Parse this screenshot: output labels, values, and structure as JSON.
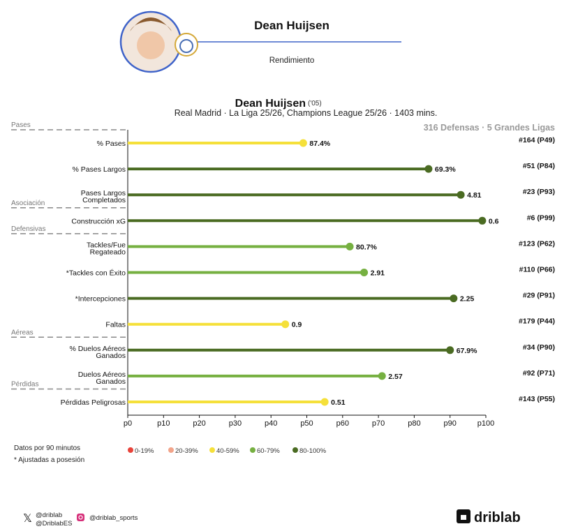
{
  "header": {
    "player_name": "Dean Huijsen",
    "subtitle": "Rendimiento"
  },
  "chart_data": {
    "type": "lollipop",
    "title": "Dean Huijsen",
    "title_suffix": "('05)",
    "subtitle": "Real Madrid · La Liga 25/26, Champions League 25/26 · 1403 mins.",
    "comparison": "316 Defensas · 5 Grandes Ligas",
    "xlim": [
      0,
      100
    ],
    "x_ticks": [
      "p0",
      "p10",
      "p20",
      "p30",
      "p40",
      "p50",
      "p60",
      "p70",
      "p80",
      "p90",
      "p100"
    ],
    "sections": [
      {
        "label": "Pases",
        "before_row": 0
      },
      {
        "label": "Asociación",
        "before_row": 3
      },
      {
        "label": "Defensivas",
        "before_row": 4
      },
      {
        "label": "Aéreas",
        "before_row": 8
      },
      {
        "label": "Pérdidas",
        "before_row": 10
      }
    ],
    "rows": [
      {
        "label": [
          "% Pases"
        ],
        "percentile": 49,
        "value": "87.4%",
        "rank": "#164 (P49)"
      },
      {
        "label": [
          "% Pases Largos"
        ],
        "percentile": 84,
        "value": "69.3%",
        "rank": "#51 (P84)"
      },
      {
        "label": [
          "Pases Largos",
          "Completados"
        ],
        "percentile": 93,
        "value": "4.81",
        "rank": "#23 (P93)"
      },
      {
        "label": [
          "Construcción xG"
        ],
        "percentile": 99,
        "value": "0.6",
        "rank": "#6 (P99)"
      },
      {
        "label": [
          "Tackles/Fue",
          "Regateado"
        ],
        "percentile": 62,
        "value": "80.7%",
        "rank": "#123 (P62)"
      },
      {
        "label": [
          "*Tackles con Éxito"
        ],
        "percentile": 66,
        "value": "2.91",
        "rank": "#110 (P66)"
      },
      {
        "label": [
          "*Intercepciones"
        ],
        "percentile": 91,
        "value": "2.25",
        "rank": "#29 (P91)"
      },
      {
        "label": [
          "Faltas"
        ],
        "percentile": 44,
        "value": "0.9",
        "rank": "#179 (P44)"
      },
      {
        "label": [
          "% Duelos Aéreos",
          "Ganados"
        ],
        "percentile": 90,
        "value": "67.9%",
        "rank": "#34 (P90)"
      },
      {
        "label": [
          "Duelos Aéreos",
          "Ganados"
        ],
        "percentile": 71,
        "value": "2.57",
        "rank": "#92 (P71)"
      },
      {
        "label": [
          "Pérdidas Peligrosas"
        ],
        "percentile": 55,
        "value": "0.51",
        "rank": "#143 (P55)"
      }
    ],
    "legend": [
      {
        "label": "0-19%",
        "color": "#e8433a"
      },
      {
        "label": "20-39%",
        "color": "#f2a48a"
      },
      {
        "label": "40-59%",
        "color": "#f5e03a"
      },
      {
        "label": "60-79%",
        "color": "#76b041"
      },
      {
        "label": "80-100%",
        "color": "#4a6b22"
      }
    ]
  },
  "notes": [
    "Datos por 90 minutos",
    "* Ajustadas a posesión"
  ],
  "footer": {
    "twitter_1": "@driblab",
    "twitter_2": "@DriblabES",
    "instagram": "@driblab_sports",
    "brand": "driblab"
  }
}
